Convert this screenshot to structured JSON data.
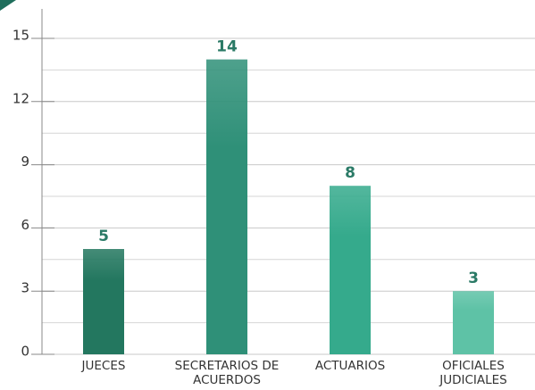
{
  "chart_data": {
    "type": "bar",
    "categories": [
      "JUECES",
      "SECRETARIOS DE ACUERDOS",
      "ACTUARIOS",
      "OFICIALES JUDICIALES"
    ],
    "values": [
      5,
      14,
      8,
      3
    ],
    "colors": [
      "#23775f",
      "#2f9078",
      "#35aa8c",
      "#5ec2a6"
    ],
    "ylim": [
      0,
      15
    ],
    "yticks": [
      0,
      3,
      6,
      9,
      12,
      15
    ],
    "minor_yticks": [
      1.5,
      4.5,
      7.5,
      10.5,
      13.5
    ],
    "grid": true
  }
}
